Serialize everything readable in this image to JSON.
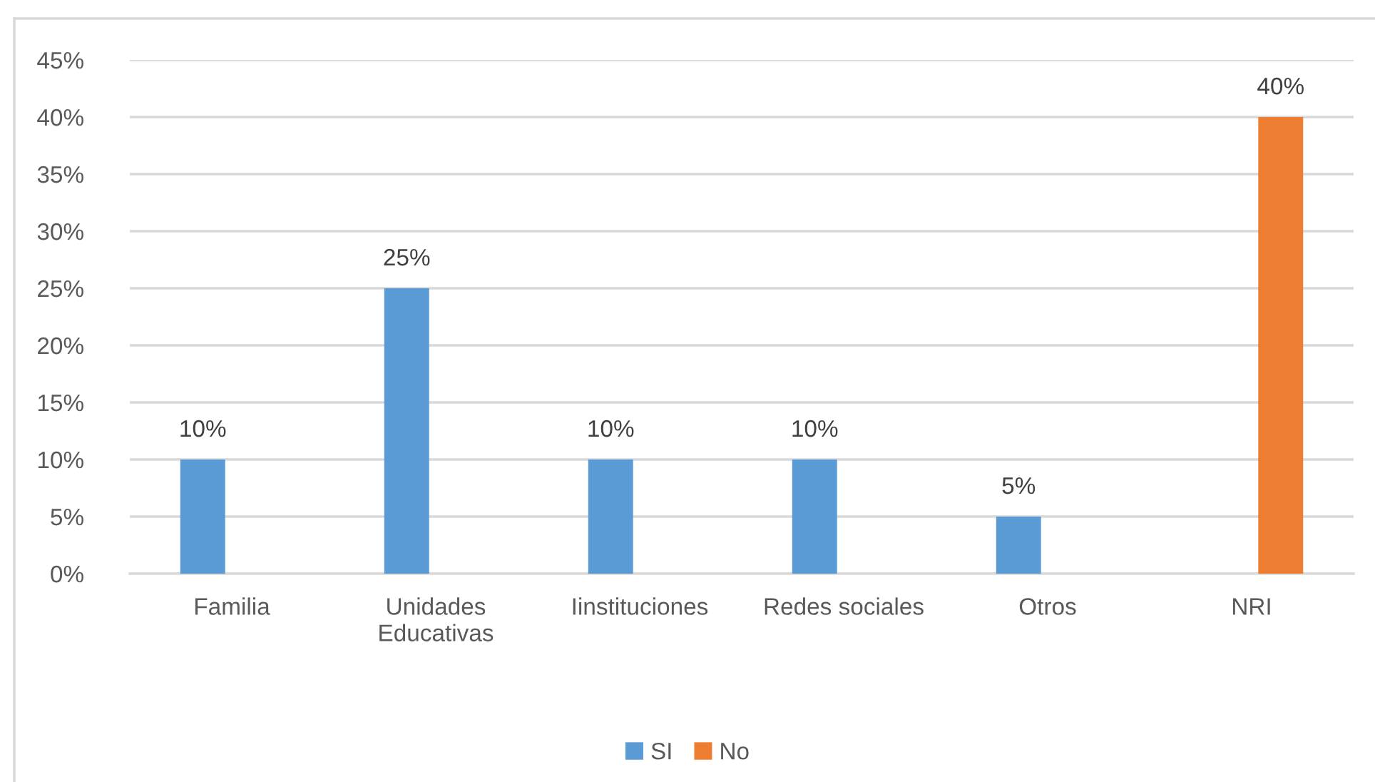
{
  "chart_data": {
    "type": "bar",
    "categories": [
      "Familia",
      "Unidades\nEducativas",
      "Iinstituciones",
      "Redes sociales",
      "Otros",
      "NRI"
    ],
    "series": [
      {
        "name": "SI",
        "color": "#5b9bd5",
        "values": [
          10,
          25,
          10,
          10,
          5,
          null
        ],
        "value_labels": [
          "10%",
          "25%",
          "10%",
          "10%",
          "5%",
          null
        ]
      },
      {
        "name": "No",
        "color": "#ed7d31",
        "values": [
          null,
          null,
          null,
          null,
          null,
          40
        ],
        "value_labels": [
          null,
          null,
          null,
          null,
          null,
          "40%"
        ]
      }
    ],
    "ylim": [
      0,
      45
    ],
    "yticks": [
      {
        "value": 0,
        "label": "0%"
      },
      {
        "value": 5,
        "label": "5%"
      },
      {
        "value": 10,
        "label": "10%"
      },
      {
        "value": 15,
        "label": "15%"
      },
      {
        "value": 20,
        "label": "20%"
      },
      {
        "value": 25,
        "label": "25%"
      },
      {
        "value": 30,
        "label": "30%"
      },
      {
        "value": 35,
        "label": "35%"
      },
      {
        "value": 40,
        "label": "40%"
      },
      {
        "value": 45,
        "label": "45%"
      }
    ],
    "grid": "y",
    "legend": "bottom"
  }
}
